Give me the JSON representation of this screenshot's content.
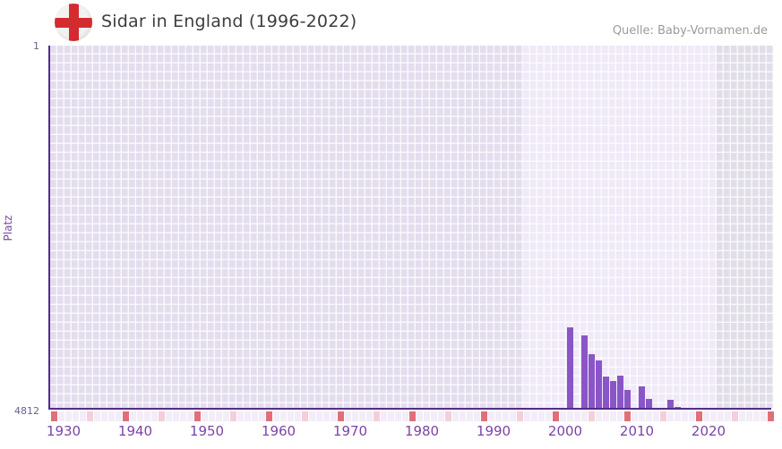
{
  "header": {
    "title": "Sidar in England (1996-2022)",
    "source": "Quelle: Baby-Vornamen.de",
    "flag_icon": "england-flag-icon"
  },
  "chart_data": {
    "type": "bar",
    "title": "Sidar in England (1996-2022)",
    "ylabel": "Platz",
    "y_axis": {
      "top_tick_label": "1",
      "bottom_tick_label": "4812",
      "min": 1,
      "max": 4812,
      "inverted": true,
      "note": "rank 1 at top, bars rise from bottom (rank 4812)"
    },
    "x_axis": {
      "start_year": 1930,
      "end_year": 2030,
      "tick_labels": [
        "1930",
        "1940",
        "1950",
        "1960",
        "1970",
        "1980",
        "1990",
        "2000",
        "2010",
        "2020"
      ],
      "decade_marker_years": [
        1930,
        1940,
        1950,
        1960,
        1970,
        1980,
        1990,
        2000,
        2010,
        2020,
        2030
      ],
      "half_decade_marker_years": [
        1935,
        1945,
        1955,
        1965,
        1975,
        1985,
        1995,
        2005,
        2015,
        2025
      ]
    },
    "highlight_range": {
      "from": 1996,
      "to": 2022
    },
    "series": [
      {
        "name": "Platz",
        "points": [
          {
            "year": 2002,
            "rank": 3750
          },
          {
            "year": 2004,
            "rank": 3850
          },
          {
            "year": 2005,
            "rank": 4100
          },
          {
            "year": 2006,
            "rank": 4190
          },
          {
            "year": 2007,
            "rank": 4400
          },
          {
            "year": 2008,
            "rank": 4460
          },
          {
            "year": 2009,
            "rank": 4385
          },
          {
            "year": 2010,
            "rank": 4570
          },
          {
            "year": 2012,
            "rank": 4530
          },
          {
            "year": 2013,
            "rank": 4695
          },
          {
            "year": 2016,
            "rank": 4710
          },
          {
            "year": 2017,
            "rank": 4795
          }
        ]
      }
    ],
    "legend": null,
    "grid": true,
    "colors": {
      "bar": "#8a56c7",
      "axis": "#532d8a",
      "grid_cell_past": "#e3ddee",
      "grid_cell_highlight": "#efe9f8",
      "grid_cell_future": "#e1dee9",
      "strip_default": "#f2edf8",
      "strip_decade": "#e06f78",
      "strip_half_decade": "#f3cfd9",
      "x_tick_label": "#7b44a8",
      "flag_red": "#d32b30"
    }
  }
}
